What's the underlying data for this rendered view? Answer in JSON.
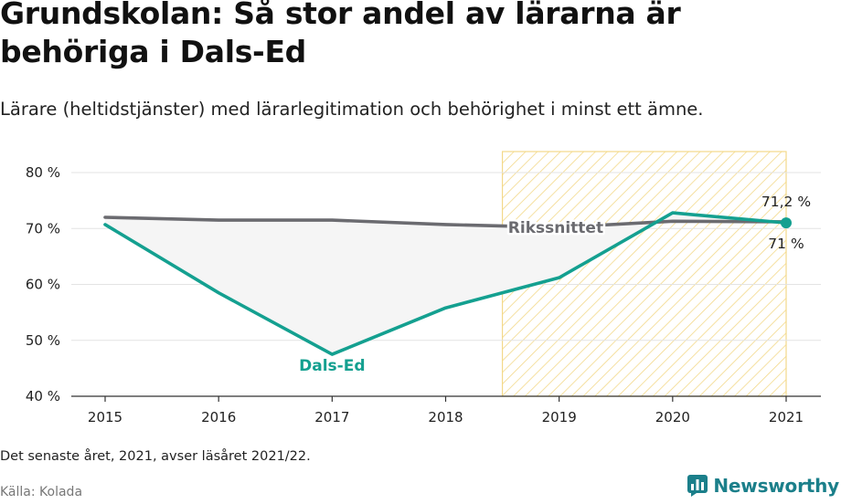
{
  "title": "Grundskolan: Så stor andel av lärarna är behöriga i Dals-Ed",
  "subtitle": "Lärare (heltidstjänster) med lärarlegitimation och behörighet i minst ett ämne.",
  "note": "Det senaste året, 2021, avser läsåret 2021/22.",
  "source": "Källa: Kolada",
  "brand": "Newsworthy",
  "chart_data": {
    "type": "line",
    "x": [
      2015,
      2016,
      2017,
      2018,
      2019,
      2020,
      2021
    ],
    "ylim": [
      40,
      80
    ],
    "yticks": [
      40,
      50,
      60,
      70,
      80
    ],
    "ytick_labels": [
      "40 %",
      "50 %",
      "60 %",
      "70 %",
      "80 %"
    ],
    "xtick_labels": [
      "2015",
      "2016",
      "2017",
      "2018",
      "2019",
      "2020",
      "2021"
    ],
    "grid": true,
    "highlight_range": [
      2018.5,
      2021
    ],
    "series": [
      {
        "name": "Rikssnittet",
        "values": [
          72.0,
          71.5,
          71.5,
          70.7,
          70.2,
          71.3,
          71.2
        ],
        "color": "#6b6b70",
        "end_label": "71,2 %"
      },
      {
        "name": "Dals-Ed",
        "values": [
          70.7,
          58.5,
          47.5,
          55.8,
          61.2,
          72.8,
          71.0
        ],
        "color": "#14a090",
        "end_label": "71 %"
      }
    ]
  }
}
